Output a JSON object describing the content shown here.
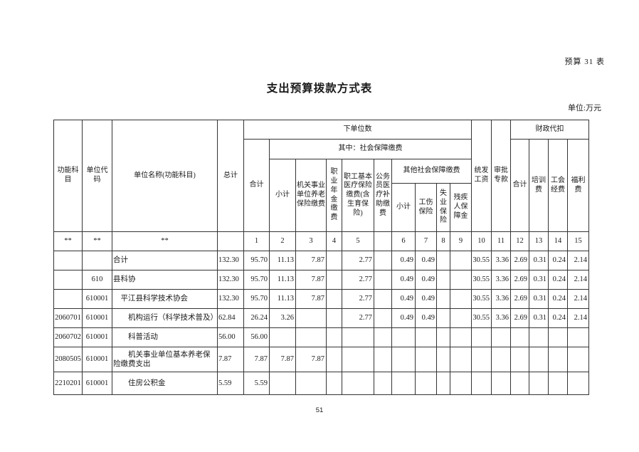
{
  "page": {
    "form_label": "预算 31 表",
    "title": "支出预算拨款方式表",
    "unit_label": "单位:万元",
    "page_number": "51"
  },
  "table": {
    "header": {
      "func_subject": "功能科目",
      "unit_code": "单位代码",
      "unit_name": "单位名称(功能科目)",
      "grand_total": "总计",
      "lower_units": "下单位数",
      "total": "合计",
      "social_security": "其中：社会保障缴费",
      "subtotal": "小计",
      "pension": "机关事业单位养老保险缴费",
      "annuity": "职业年金缴费",
      "medical": "职工基本医疗保险缴费(含生育保险)",
      "civil_medical": "公务员医疗补助缴费",
      "other_social": "其他社会保障缴费",
      "other_subtotal": "小计",
      "injury": "工伤保险",
      "unemployment": "失业保险",
      "disability": "残疾人保障金",
      "unified_salary": "统发工资",
      "approved_funds": "审批专款",
      "withholding": "财政代扣",
      "withholding_total": "合计",
      "training_fee": "培训费",
      "union_fee": "工会经费",
      "welfare_fee": "福利费"
    },
    "index_row": [
      "**",
      "**",
      "**",
      "",
      "1",
      "2",
      "3",
      "4",
      "5",
      "",
      "6",
      "7",
      "8",
      "9",
      "10",
      "11",
      "12",
      "13",
      "14",
      "15"
    ],
    "rows": [
      {
        "func": "",
        "code": "",
        "name": "合计",
        "indent": 0,
        "tall": false,
        "values": [
          "132.30",
          "95.70",
          "11.13",
          "7.87",
          "",
          "2.77",
          "",
          "0.49",
          "0.49",
          "",
          "",
          "30.55",
          "3.36",
          "2.69",
          "0.31",
          "0.24",
          "2.14"
        ]
      },
      {
        "func": "",
        "code": "610",
        "name": "县科协",
        "indent": 0,
        "tall": false,
        "values": [
          "132.30",
          "95.70",
          "11.13",
          "7.87",
          "",
          "2.77",
          "",
          "0.49",
          "0.49",
          "",
          "",
          "30.55",
          "3.36",
          "2.69",
          "0.31",
          "0.24",
          "2.14"
        ]
      },
      {
        "func": "",
        "code": "610001",
        "name": "平江县科学技术协会",
        "indent": 1,
        "tall": false,
        "values": [
          "132.30",
          "95.70",
          "11.13",
          "7.87",
          "",
          "2.77",
          "",
          "0.49",
          "0.49",
          "",
          "",
          "30.55",
          "3.36",
          "2.69",
          "0.31",
          "0.24",
          "2.14"
        ]
      },
      {
        "func": "2060701",
        "code": "610001",
        "name": "机构运行（科学技术普及）",
        "indent": 2,
        "tall": false,
        "values": [
          "62.84",
          "26.24",
          "3.26",
          "",
          "",
          "2.77",
          "",
          "0.49",
          "0.49",
          "",
          "",
          "30.55",
          "3.36",
          "2.69",
          "0.31",
          "0.24",
          "2.14"
        ]
      },
      {
        "func": "2060702",
        "code": "610001",
        "name": "科普活动",
        "indent": 2,
        "tall": false,
        "values": [
          "56.00",
          "56.00",
          "",
          "",
          "",
          "",
          "",
          "",
          "",
          "",
          "",
          "",
          "",
          "",
          "",
          "",
          ""
        ]
      },
      {
        "func": "2080505",
        "code": "610001",
        "name": "机关事业单位基本养老保险缴费支出",
        "indent": 2,
        "tall": true,
        "values": [
          "7.87",
          "7.87",
          "7.87",
          "7.87",
          "",
          "",
          "",
          "",
          "",
          "",
          "",
          "",
          "",
          "",
          "",
          "",
          ""
        ]
      },
      {
        "func": "2210201",
        "code": "610001",
        "name": "住房公积金",
        "indent": 2,
        "tall": false,
        "last": true,
        "values": [
          "5.59",
          "5.59",
          "",
          "",
          "",
          "",
          "",
          "",
          "",
          "",
          "",
          "",
          "",
          "",
          "",
          "",
          ""
        ]
      }
    ]
  }
}
